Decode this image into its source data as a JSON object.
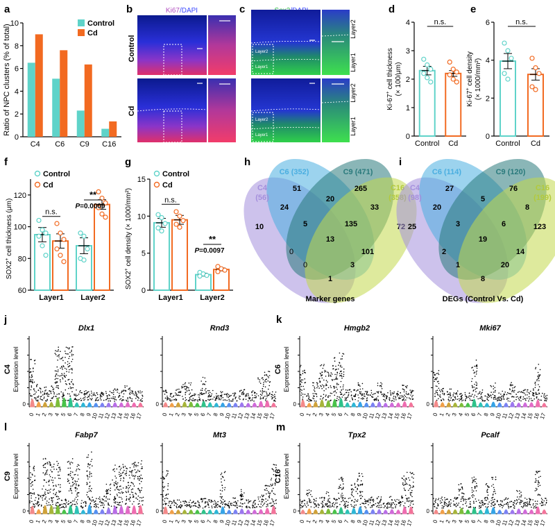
{
  "colors": {
    "control": "#5fd3c9",
    "cd": "#f26a21",
    "c4": "#a48fdc",
    "c6": "#4aaee0",
    "c9": "#2a7a7c",
    "c16": "#c3d94c",
    "ki67_label": "#b24fc0",
    "sox2_label": "#2fb74a",
    "dapi_label": "#3b49ff"
  },
  "panels": {
    "a": "a",
    "b": "b",
    "c": "c",
    "d": "d",
    "e": "e",
    "f": "f",
    "g": "g",
    "h": "h",
    "i": "i",
    "j": "j",
    "k": "k",
    "l": "l",
    "m": "m"
  },
  "microscopy": {
    "b_title_marker": "Ki67",
    "b_title_rest": "/DAPI",
    "c_title_marker": "Sox2",
    "c_title_rest": "/DAPI",
    "row_control": "Control",
    "row_cd": "Cd",
    "layer1": "Layer1",
    "layer2": "Layer2",
    "inset_layer1": "Layer1",
    "inset_layer2": "Layer2"
  },
  "venn_h": {
    "caption": "Marker genes",
    "set_labels": [
      "C4",
      "(56)",
      "C6 (352)",
      "C9 (471)",
      "C16",
      "(358)"
    ],
    "counts": [
      "51",
      "265",
      "20",
      "24",
      "33",
      "10",
      "5",
      "135",
      "72",
      "13",
      "0",
      "101",
      "0",
      "3",
      "1"
    ]
  },
  "venn_i": {
    "caption": "DEGs (Control Vs. Cd)",
    "set_labels": [
      "C4",
      "(98)",
      "C6 (114)",
      "C9 (120)",
      "C16",
      "(199)"
    ],
    "counts": [
      "27",
      "76",
      "5",
      "20",
      "8",
      "25",
      "3",
      "6",
      "123",
      "19",
      "2",
      "14",
      "1",
      "20",
      "8"
    ]
  },
  "violin": {
    "y_title": "Expression level",
    "x_ticks": [
      "0",
      "1",
      "2",
      "3",
      "4",
      "5",
      "6",
      "7",
      "8",
      "9",
      "10",
      "11",
      "12",
      "13",
      "14",
      "15",
      "16",
      "17"
    ],
    "panels": [
      {
        "cluster": "C4",
        "genes": [
          "Dlx1",
          "Rnd3"
        ]
      },
      {
        "cluster": "C6",
        "genes": [
          "Hmgb2",
          "Mki67"
        ]
      },
      {
        "cluster": "C9",
        "genes": [
          "Fabp7",
          "Mt3"
        ]
      },
      {
        "cluster": "C16",
        "genes": [
          "Tpx2",
          "Pcalf"
        ]
      }
    ]
  },
  "chart_data": [
    {
      "type": "bar",
      "panel": "a",
      "title": "",
      "ylabel": "Ratio of  NPC clusters (% of total)",
      "categories": [
        "C4",
        "C6",
        "C9",
        "C16"
      ],
      "series": [
        {
          "name": "Control",
          "values": [
            6.5,
            5.1,
            2.3,
            0.7
          ]
        },
        {
          "name": "Cd",
          "values": [
            9.0,
            7.6,
            6.35,
            1.35
          ]
        }
      ],
      "ylim": [
        0,
        10
      ],
      "yticks": [
        "0",
        "2",
        "4",
        "6",
        "8",
        "10"
      ],
      "legend": "top-right"
    },
    {
      "type": "bar",
      "panel": "d",
      "ylabel_main": "Ki-67",
      "ylabel_sup": "+",
      "ylabel_rest": " cell thickness",
      "ylabel2": "(× 100/μm)",
      "categories": [
        "Control",
        "Cd"
      ],
      "values": [
        2.3,
        2.2
      ],
      "errors": [
        0.15,
        0.1
      ],
      "points": [
        [
          2.7,
          2.5,
          2.35,
          2.2,
          2.05,
          1.9
        ],
        [
          2.6,
          2.35,
          2.25,
          2.15,
          2.0,
          1.9
        ]
      ],
      "ylim": [
        0,
        4
      ],
      "yticks": [
        "0",
        "1",
        "2",
        "3",
        "4"
      ],
      "sig": "n.s."
    },
    {
      "type": "bar",
      "panel": "e",
      "ylabel_main": "Ki-67",
      "ylabel_sup": "+",
      "ylabel_rest": " cell density",
      "ylabel2": "(× 1000/mm²)",
      "categories": [
        "Control",
        "Cd"
      ],
      "values": [
        3.95,
        3.25
      ],
      "errors": [
        0.4,
        0.3
      ],
      "points": [
        [
          4.9,
          4.5,
          4.1,
          3.3,
          3.0
        ],
        [
          4.1,
          3.6,
          3.3,
          2.6,
          2.45
        ]
      ],
      "ylim": [
        0,
        6
      ],
      "yticks": [
        "0",
        "2",
        "4",
        "6"
      ],
      "sig": "n.s."
    },
    {
      "type": "bar",
      "panel": "f",
      "ylabel_main": "SOX2",
      "ylabel_sup": "+",
      "ylabel_rest": " cell thickness (μm)",
      "categories": [
        "Layer1",
        "Layer2"
      ],
      "series": [
        {
          "name": "Control",
          "values": [
            95,
            88
          ],
          "errors": [
            4.5,
            5
          ],
          "points": [
            [
              104,
              98,
              96,
              94,
              88,
              82
            ],
            [
              96,
              94,
              86,
              80,
              79
            ]
          ]
        },
        {
          "name": "Cd",
          "values": [
            91,
            114
          ],
          "errors": [
            4.5,
            3
          ],
          "points": [
            [
              102,
              96,
              92,
              86,
              82,
              78
            ],
            [
              122,
              118,
              115,
              112,
              108,
              106
            ]
          ]
        }
      ],
      "ylim": [
        60,
        130
      ],
      "yticks": [
        "60",
        "80",
        "100",
        "120"
      ],
      "sig_layer1": "n.s.",
      "sig_layer2": "**",
      "p_prefix": "P",
      "p_value": "=0.0009",
      "legend": "top-left"
    },
    {
      "type": "bar",
      "panel": "g",
      "ylabel_main": "SOX2",
      "ylabel_sup": "+",
      "ylabel_rest": " cell density (× 1000/mm²)",
      "categories": [
        "Layer1",
        "Layer2"
      ],
      "series": [
        {
          "name": "Control",
          "values": [
            9.1,
            2.1
          ],
          "errors": [
            0.6,
            0.2
          ],
          "points": [
            [
              10.2,
              9.8,
              9.0,
              8.4,
              8.0
            ],
            [
              2.4,
              2.2,
              2.0,
              1.9
            ]
          ]
        },
        {
          "name": "Cd",
          "values": [
            9.5,
            2.8
          ],
          "errors": [
            0.6,
            0.2
          ],
          "points": [
            [
              10.6,
              10.0,
              9.4,
              8.9,
              8.5
            ],
            [
              3.2,
              2.9,
              2.7,
              2.5
            ]
          ]
        }
      ],
      "ylim": [
        0,
        15
      ],
      "yticks": [
        "0",
        "5",
        "10",
        "15"
      ],
      "sig_layer1": "n.s.",
      "sig_layer2": "**",
      "p_prefix": "P",
      "p_value": "=0.0097",
      "legend": "top-left"
    }
  ]
}
